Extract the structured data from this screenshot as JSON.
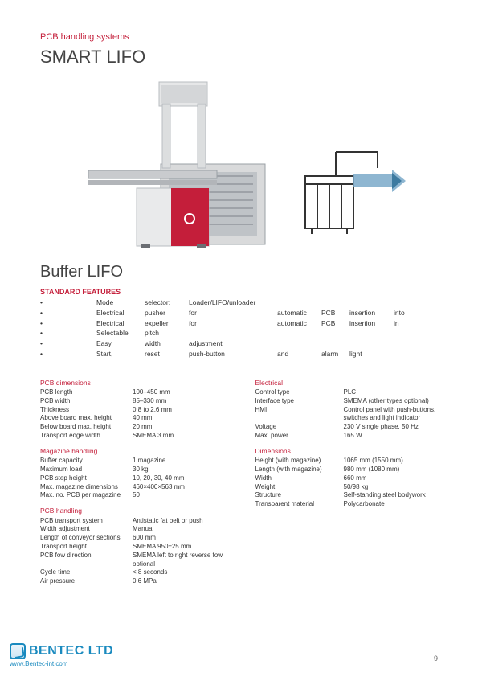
{
  "header": {
    "category": "PCB handling systems",
    "title": "SMART LIFO",
    "subtitle": "Buffer LIFO"
  },
  "features": {
    "heading": "STANDARD FEATURES",
    "rows": [
      {
        "c1": "Mode",
        "c2": "selector:",
        "c3": "Loader/LIFO/unloader",
        "c4": "",
        "c5": "",
        "c6": "",
        "c7": ""
      },
      {
        "c1": "Electrical",
        "c2": "pusher",
        "c3": "for",
        "c4": "automatic",
        "c5": "PCB",
        "c6": "insertion",
        "c7": "into"
      },
      {
        "c1": "Electrical",
        "c2": "expeller",
        "c3": "for",
        "c4": "automatic",
        "c5": "PCB",
        "c6": "insertion",
        "c7": "in"
      },
      {
        "c1": "Selectable",
        "c2": "pitch",
        "c3": "",
        "c4": "",
        "c5": "",
        "c6": "",
        "c7": ""
      },
      {
        "c1": "Easy",
        "c2": "width",
        "c3": "adjustment",
        "c4": "",
        "c5": "",
        "c6": "",
        "c7": ""
      },
      {
        "c1": "Start,",
        "c2": "reset",
        "c3": "push-button",
        "c4": "and",
        "c5": "alarm",
        "c6": "light",
        "c7": ""
      }
    ]
  },
  "left": {
    "pcb_dimensions": {
      "head": "PCB dimensions",
      "rows": [
        {
          "label": "PCB length",
          "value": "100–450 mm"
        },
        {
          "label": "PCB width",
          "value": "85–330 mm"
        },
        {
          "label": "Thickness",
          "value": "0,8 to 2,6 mm"
        },
        {
          "label": "Above board max. height",
          "value": "40 mm"
        },
        {
          "label": "Below board max. height",
          "value": "20 mm"
        },
        {
          "label": "Transport edge width",
          "value": "SMEMA 3 mm"
        }
      ]
    },
    "magazine": {
      "head": "Magazine handling",
      "rows": [
        {
          "label": "Buffer capacity",
          "value": "1 magazine"
        },
        {
          "label": "Maximum load",
          "value": "30 kg"
        },
        {
          "label": "PCB step height",
          "value": "10, 20, 30, 40 mm"
        },
        {
          "label": "Max. magazine dimensions",
          "value": "460×400×563 mm"
        },
        {
          "label": "Max. no. PCB per magazine",
          "value": "50"
        }
      ]
    },
    "handling": {
      "head": "PCB handling",
      "rows": [
        {
          "label": "PCB transport system",
          "value": "Antistatic fat belt or push"
        },
        {
          "label": "Width adjustment",
          "value": "Manual"
        },
        {
          "label": "Length of conveyor sections",
          "value": "600 mm"
        },
        {
          "label": "Transport height",
          "value": "SMEMA 950±25 mm"
        },
        {
          "label": "PCB fow direction",
          "value": "SMEMA left to right reverse fow optional"
        },
        {
          "label": "Cycle time",
          "value": "< 8 seconds"
        },
        {
          "label": "Air pressure",
          "value": "0,6 MPa"
        }
      ]
    }
  },
  "right": {
    "electrical": {
      "head": "Electrical",
      "rows": [
        {
          "label": "Control type",
          "value": "PLC"
        },
        {
          "label": "Interface type",
          "value": "SMEMA (other types optional)"
        },
        {
          "label": "HMI",
          "value": "Control panel with push-buttons, switches and light indicator"
        },
        {
          "label": "Voltage",
          "value": "230 V single phase, 50 Hz"
        },
        {
          "label": "Max. power",
          "value": "165 W"
        }
      ]
    },
    "dimensions": {
      "head": "Dimensions",
      "rows": [
        {
          "label": "Height (with magazine)",
          "value": "1065 mm (1550 mm)"
        },
        {
          "label": "Length (with magazine)",
          "value": "980 mm (1080 mm)"
        },
        {
          "label": "Width",
          "value": "660 mm"
        },
        {
          "label": "Weight",
          "value": "50/98 kg"
        },
        {
          "label": "Structure",
          "value": "Self-standing steel bodywork"
        },
        {
          "label": "Transparent material",
          "value": "Polycarbonate"
        }
      ]
    }
  },
  "footer": {
    "company": "BENTEC LTD",
    "url": "www.Bentec-int.com",
    "page": "9"
  },
  "style": {
    "accent": "#c41e3a",
    "logo_color": "#1a8abf"
  }
}
